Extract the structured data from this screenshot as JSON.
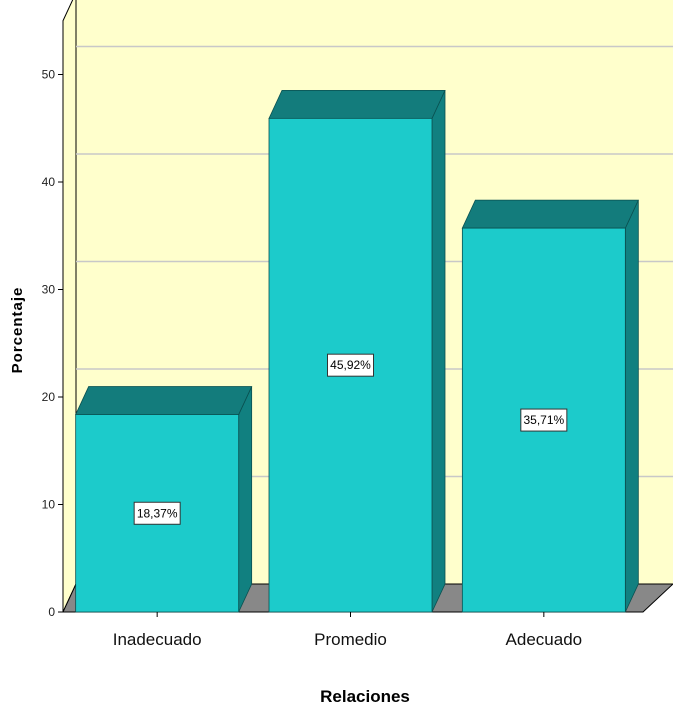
{
  "chart_data": {
    "type": "bar",
    "categories": [
      "Inadecuado",
      "Promedio",
      "Adecuado"
    ],
    "values": [
      18.37,
      45.92,
      35.71
    ],
    "data_labels": [
      "18,37%",
      "45,92%",
      "35,71%"
    ],
    "xlabel": "Relaciones",
    "ylabel": "Porcentaje",
    "ylim": [
      0,
      55
    ],
    "yticks": [
      0,
      10,
      20,
      30,
      40,
      50
    ],
    "grid": true,
    "colors": {
      "bar_front": "#1ccbcb",
      "bar_top": "#137c7c",
      "bar_side": "#118080",
      "plot_bg": "#ffffcc",
      "floor": "#888888",
      "gridline": "#c8c8c8"
    }
  }
}
